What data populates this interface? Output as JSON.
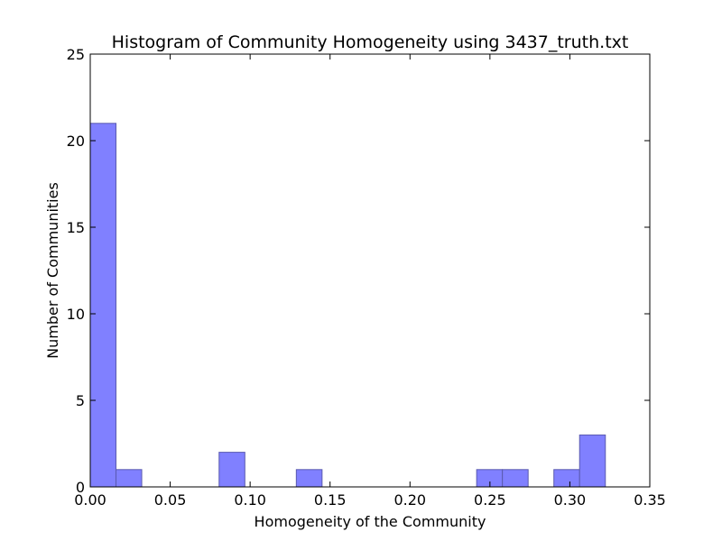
{
  "chart_data": {
    "type": "bar",
    "title": "Histogram of Community Homogeneity using 3437_truth.txt",
    "xlabel": "Homogeneity of the Community",
    "ylabel": "Number of Communities",
    "xlim": [
      0.0,
      0.35
    ],
    "ylim": [
      0,
      25
    ],
    "x_ticks": [
      "0.00",
      "0.05",
      "0.10",
      "0.15",
      "0.20",
      "0.25",
      "0.30",
      "0.35"
    ],
    "y_ticks": [
      "0",
      "5",
      "10",
      "15",
      "20",
      "25"
    ],
    "grid": false,
    "bar_color": "#8080ff",
    "bar_edge_color": "#5a5ab0",
    "bins": [
      {
        "x0": 0.0,
        "x1": 0.0161,
        "count": 21
      },
      {
        "x0": 0.0161,
        "x1": 0.0322,
        "count": 1
      },
      {
        "x0": 0.0806,
        "x1": 0.0967,
        "count": 2
      },
      {
        "x0": 0.1289,
        "x1": 0.145,
        "count": 1
      },
      {
        "x0": 0.2417,
        "x1": 0.2578,
        "count": 1
      },
      {
        "x0": 0.2578,
        "x1": 0.2739,
        "count": 1
      },
      {
        "x0": 0.29,
        "x1": 0.3061,
        "count": 1
      },
      {
        "x0": 0.3061,
        "x1": 0.3222,
        "count": 3
      }
    ]
  }
}
